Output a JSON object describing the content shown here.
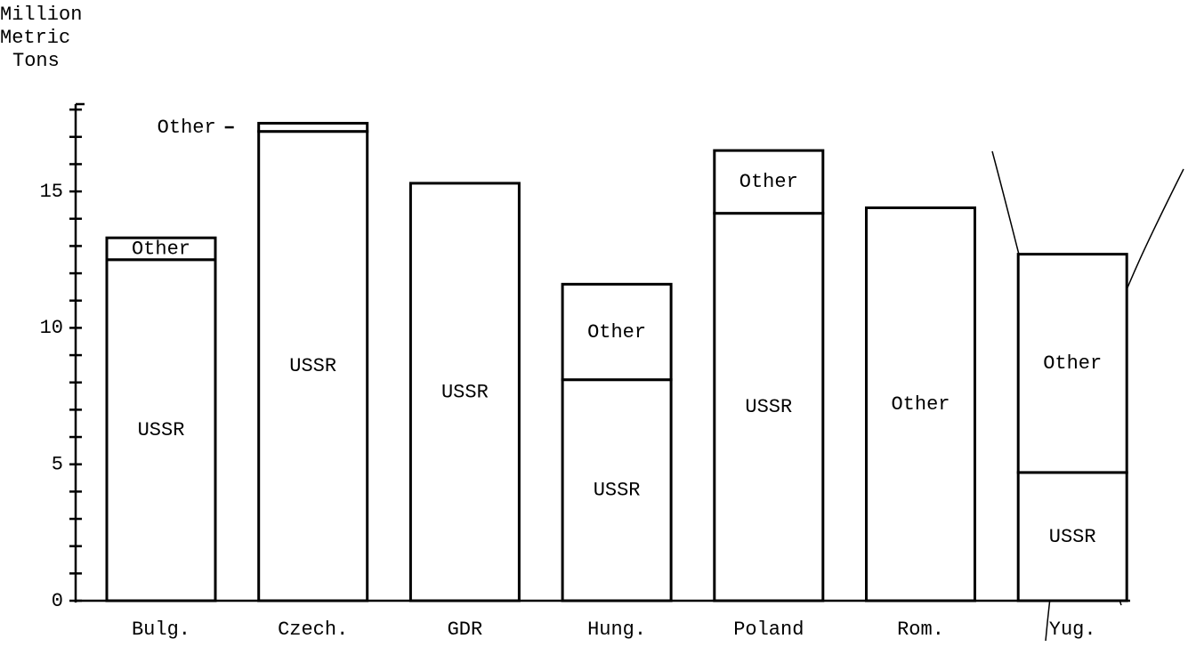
{
  "chart_data": {
    "type": "stacked_bar",
    "y_label": [
      "Million",
      "Metric",
      "Tons"
    ],
    "categories": [
      "Bulg.",
      "Czech.",
      "GDR",
      "Hung.",
      "Poland",
      "Rom.",
      "Yug."
    ],
    "series": [
      {
        "name": "USSR",
        "color": "#ffffff",
        "values": [
          12.5,
          17.2,
          15.3,
          8.1,
          14.2,
          0,
          4.7
        ]
      },
      {
        "name": "Other",
        "color": "#ffffff",
        "values": [
          0.8,
          0.3,
          0,
          3.5,
          2.3,
          14.4,
          8.0
        ]
      }
    ],
    "ylim": [
      0,
      18.2
    ],
    "yticks": [
      0,
      5,
      10,
      15
    ],
    "yticks_minor": [
      1,
      2,
      3,
      4,
      6,
      7,
      8,
      9,
      11,
      12,
      13,
      14,
      16,
      17,
      18
    ]
  }
}
